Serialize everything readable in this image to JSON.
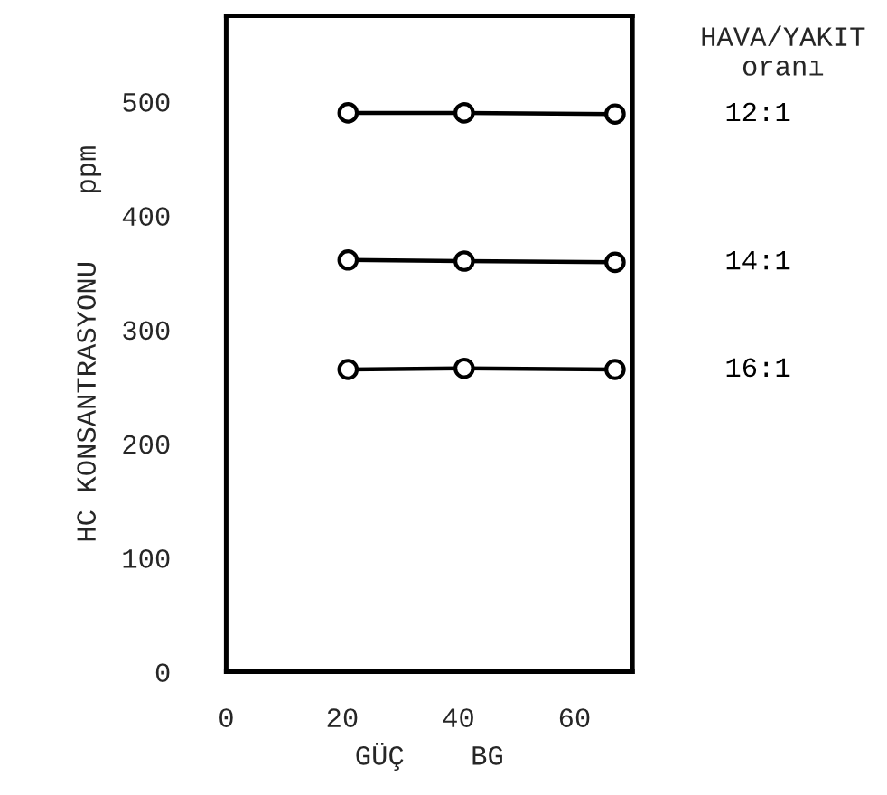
{
  "chart_data": {
    "type": "line",
    "xlabel": "GÜÇ    BG",
    "ylabel": "HC KONSANTRASYONU    ppm",
    "legend_title": "HAVA/YAKIT\noranı",
    "x": [
      21,
      41,
      67
    ],
    "series": [
      {
        "name": "12:1",
        "color": "#000000",
        "values": [
          490,
          490,
          489
        ]
      },
      {
        "name": "14:1",
        "color": "#000000",
        "values": [
          361,
          360,
          359
        ]
      },
      {
        "name": "16:1",
        "color": "#000000",
        "values": [
          265,
          266,
          265
        ]
      }
    ],
    "xlim": [
      0,
      70
    ],
    "xticks": [
      0,
      20,
      40,
      60
    ],
    "ylim": [
      0,
      575
    ],
    "yticks": [
      0,
      100,
      200,
      300,
      400,
      500
    ],
    "marker": "circle",
    "line_style": "solid",
    "grid": false,
    "legend": "right"
  }
}
